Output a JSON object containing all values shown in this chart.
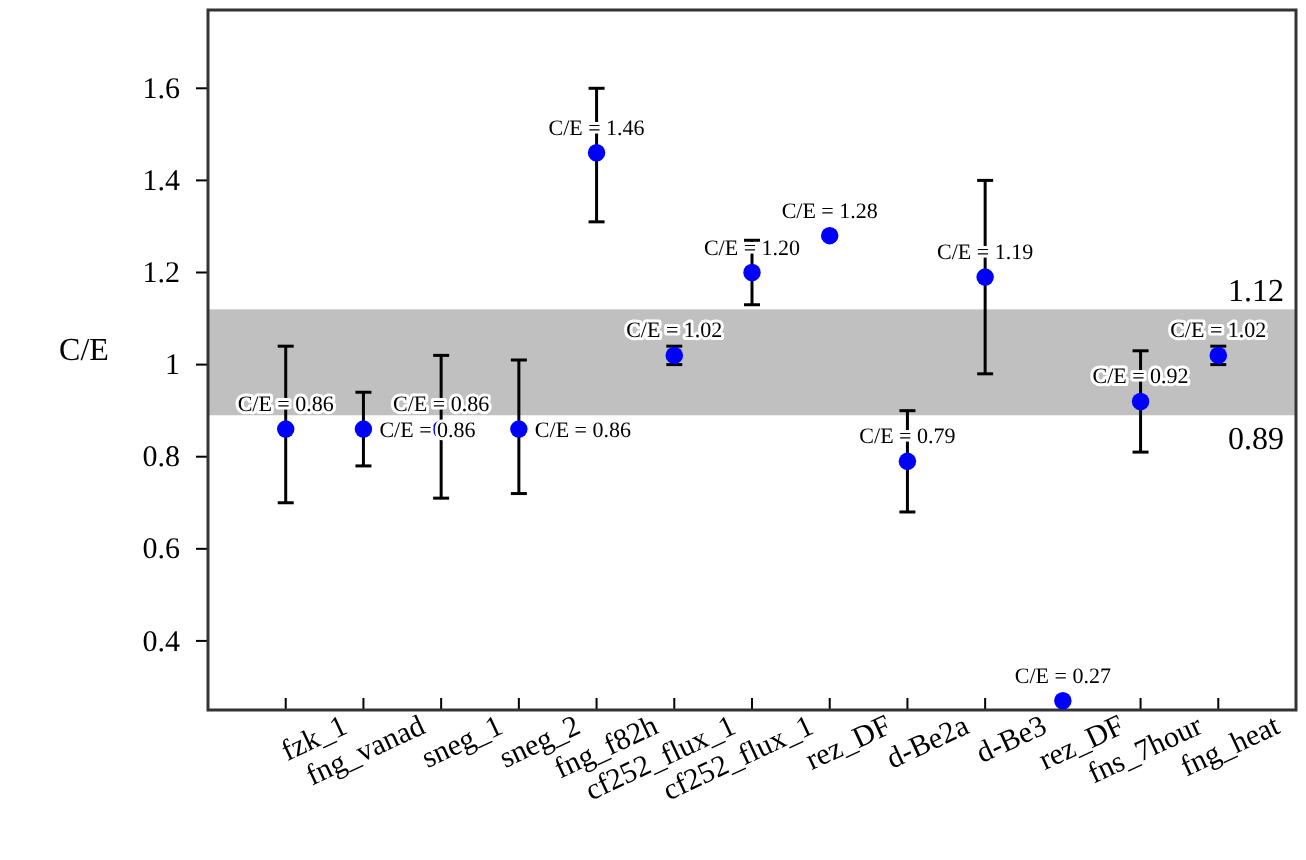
{
  "chart_data": {
    "type": "scatter",
    "ylabel": "C/E",
    "categories": [
      "fzk_1",
      "fng_vanad",
      "sneg_1",
      "sneg_2",
      "fng_f82h",
      "cf252_flux_1",
      "cf252_flux_1",
      "rez_DF",
      "d-Be2a",
      "d-Be3",
      "rez_DF",
      "fns_7hour",
      "fng_heat"
    ],
    "values": [
      0.86,
      0.86,
      0.86,
      0.86,
      1.46,
      1.02,
      1.2,
      1.28,
      0.79,
      1.19,
      0.27,
      0.92,
      1.02
    ],
    "errors": [
      [
        0.7,
        1.04
      ],
      [
        0.78,
        0.94
      ],
      [
        0.71,
        1.02
      ],
      [
        0.72,
        1.01
      ],
      [
        1.31,
        1.6
      ],
      [
        1.0,
        1.04
      ],
      [
        1.13,
        1.27
      ],
      null,
      [
        0.68,
        0.9
      ],
      [
        0.98,
        1.4
      ],
      null,
      [
        0.81,
        1.03
      ],
      [
        1.0,
        1.04
      ]
    ],
    "value_labels": [
      "C/E = 0.86",
      "C/E = 0.86",
      "C/E = 0.86",
      "C/E = 0.86",
      "C/E = 1.46",
      "C/E = 1.02",
      "C/E = 1.20",
      "C/E = 1.28",
      "C/E = 0.79",
      "C/E = 1.19",
      "C/E = 0.27",
      "C/E = 0.92",
      "C/E = 1.02"
    ],
    "color": "#0000ff",
    "marker": "circle",
    "grid": false,
    "ylim": [
      0.25,
      1.77
    ],
    "yticks": [
      0.4,
      0.6,
      0.8,
      1,
      1.2,
      1.4,
      1.6
    ],
    "bands": [
      {
        "axis": "y",
        "from": 0.89,
        "to": 1.12,
        "color": "#c0c0c0"
      }
    ],
    "annotations": [
      {
        "text": "1.12",
        "y": 1.12
      },
      {
        "text": "0.89",
        "y": 0.89
      }
    ]
  }
}
